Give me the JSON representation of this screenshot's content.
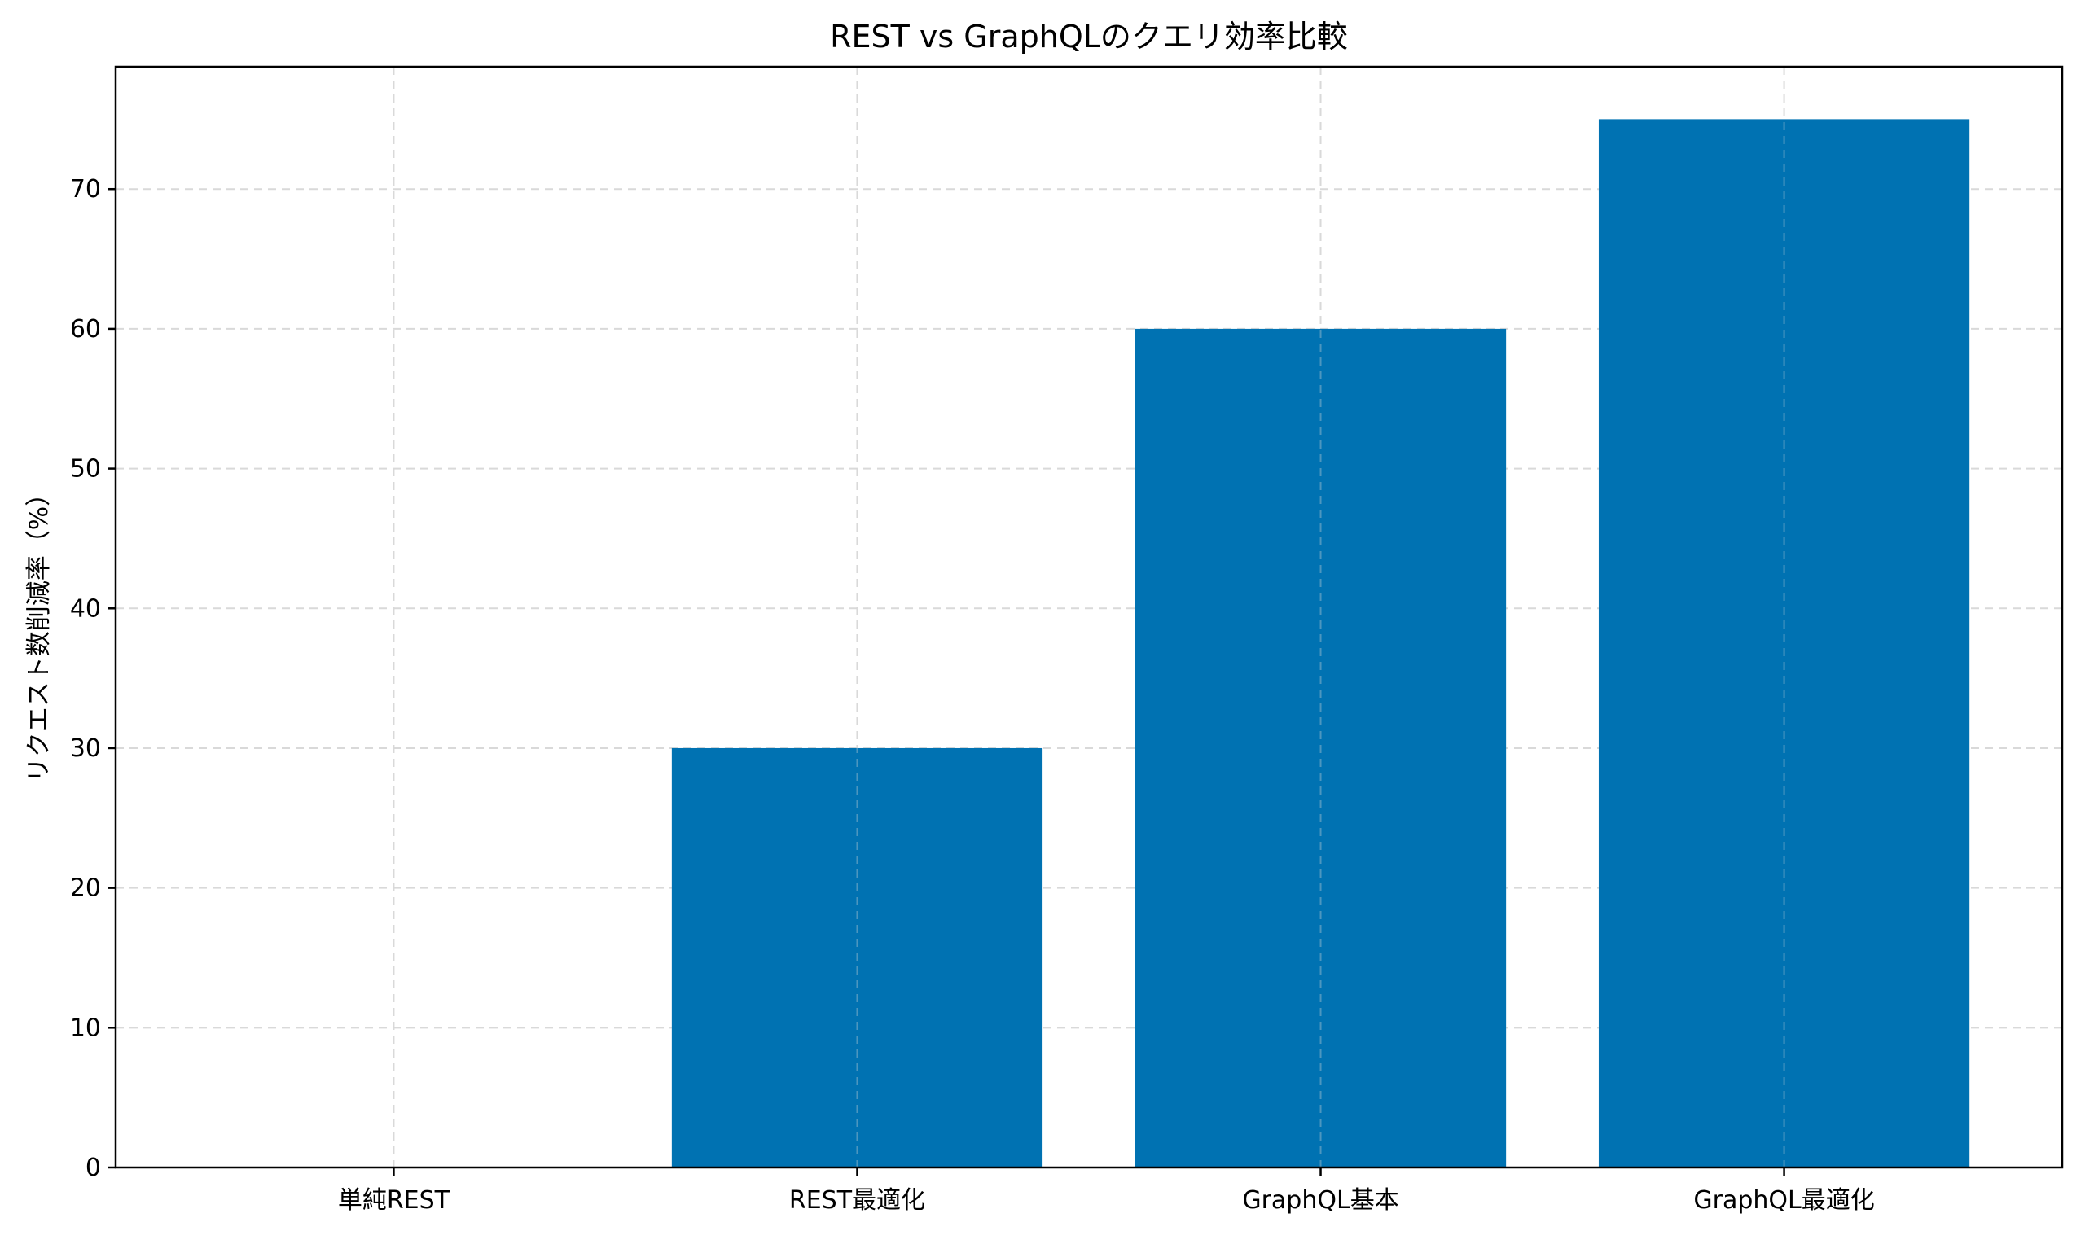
{
  "chart_data": {
    "type": "bar",
    "title": "REST vs GraphQLのクエリ効率比較",
    "xlabel": "",
    "ylabel": "リクエスト数削減率（%）",
    "categories": [
      "単純REST",
      "REST最適化",
      "GraphQL基本",
      "GraphQL最適化"
    ],
    "values": [
      0,
      30,
      60,
      75
    ],
    "ylim": [
      0,
      78.75
    ],
    "yticks": [
      0,
      10,
      20,
      30,
      40,
      50,
      60,
      70
    ],
    "grid": true,
    "bar_color": "#0072b2",
    "legend": "none"
  }
}
